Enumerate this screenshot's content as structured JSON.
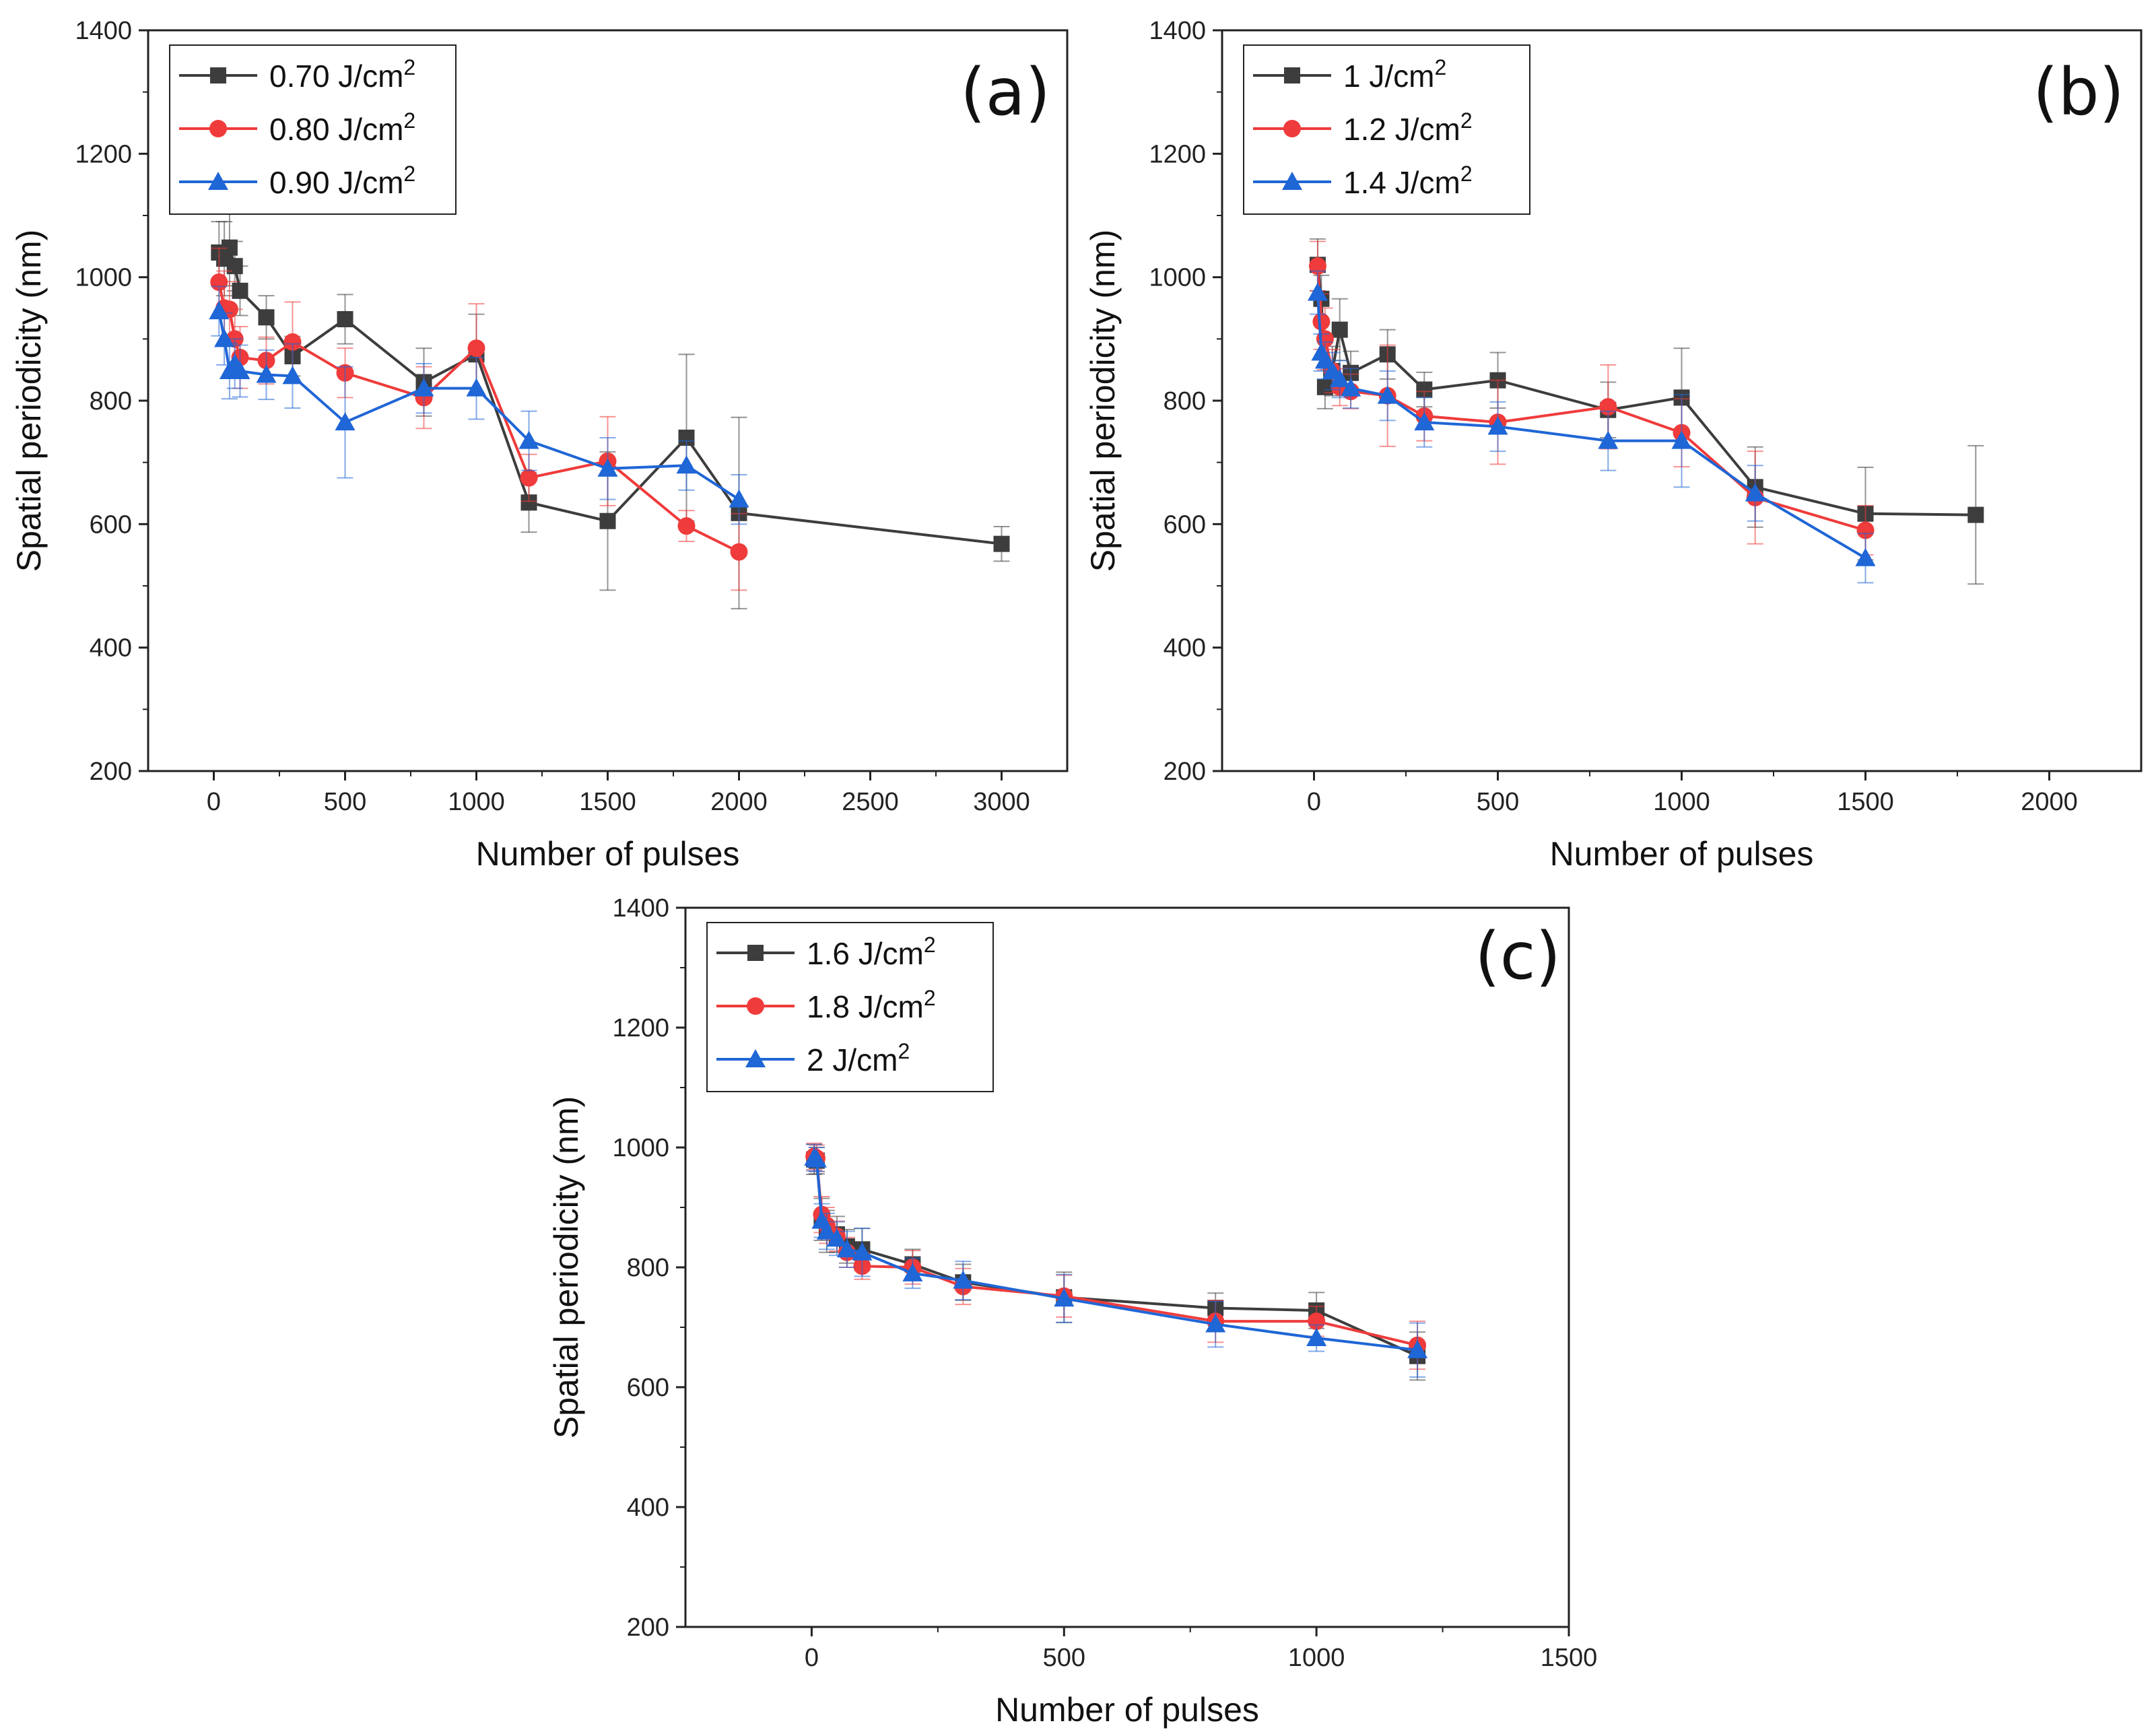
{
  "colors": {
    "black": "#3d3d3d",
    "red": "#ef3b3b",
    "blue": "#1f66d6"
  },
  "chart_data": [
    {
      "type": "line",
      "panel_label": "(a)",
      "xlabel": "Number of pulses",
      "ylabel": "Spatial periodicity (nm)",
      "xlim": [
        -250,
        3250
      ],
      "ylim": [
        200,
        1400
      ],
      "xticks": [
        0,
        500,
        1000,
        1500,
        2000,
        2500,
        3000
      ],
      "yticks": [
        200,
        400,
        600,
        800,
        1000,
        1200,
        1400
      ],
      "legend_position": "top-left",
      "series": [
        {
          "name": "0.70 J/cm",
          "superscript": "2",
          "marker": "square",
          "color": "#3d3d3d",
          "x": [
            20,
            40,
            60,
            80,
            100,
            200,
            300,
            500,
            800,
            1000,
            1200,
            1500,
            1800,
            2000,
            3000
          ],
          "y": [
            1040,
            1030,
            1048,
            1018,
            978,
            935,
            872,
            932,
            830,
            875,
            635,
            605,
            740,
            618,
            568
          ],
          "err": [
            50,
            60,
            62,
            40,
            40,
            35,
            32,
            40,
            55,
            65,
            48,
            112,
            135,
            155,
            28
          ]
        },
        {
          "name": "0.80 J/cm",
          "superscript": "2",
          "marker": "circle",
          "color": "#ef3b3b",
          "x": [
            20,
            40,
            60,
            80,
            100,
            200,
            300,
            500,
            800,
            1000,
            1200,
            1500,
            1800,
            2000
          ],
          "y": [
            992,
            950,
            948,
            900,
            870,
            865,
            895,
            845,
            805,
            885,
            675,
            702,
            597,
            555
          ],
          "err": [
            55,
            60,
            45,
            48,
            50,
            38,
            65,
            40,
            50,
            72,
            38,
            72,
            25,
            62
          ]
        },
        {
          "name": "0.90 J/cm",
          "superscript": "2",
          "marker": "triangle",
          "color": "#1f66d6",
          "x": [
            20,
            40,
            60,
            80,
            100,
            200,
            300,
            500,
            800,
            1000,
            1200,
            1500,
            1800,
            2000
          ],
          "y": [
            945,
            900,
            848,
            860,
            848,
            842,
            840,
            765,
            820,
            820,
            735,
            690,
            695,
            640
          ],
          "err": [
            40,
            42,
            45,
            40,
            42,
            40,
            52,
            90,
            40,
            50,
            48,
            50,
            40,
            40
          ]
        }
      ]
    },
    {
      "type": "line",
      "panel_label": "(b)",
      "xlabel": "Number of pulses",
      "ylabel": "Spatial periodicity (nm)",
      "xlim": [
        -250,
        2250
      ],
      "ylim": [
        200,
        1400
      ],
      "xticks": [
        0,
        500,
        1000,
        1500,
        2000
      ],
      "yticks": [
        200,
        400,
        600,
        800,
        1000,
        1200,
        1400
      ],
      "legend_position": "top-left",
      "series": [
        {
          "name": "1 J/cm",
          "superscript": "2",
          "marker": "square",
          "color": "#3d3d3d",
          "x": [
            10,
            20,
            30,
            50,
            70,
            100,
            200,
            300,
            500,
            800,
            1000,
            1200,
            1500,
            1800
          ],
          "y": [
            1020,
            965,
            822,
            848,
            915,
            845,
            875,
            818,
            833,
            785,
            805,
            660,
            617,
            615
          ],
          "err": [
            42,
            38,
            35,
            40,
            50,
            35,
            40,
            28,
            45,
            45,
            80,
            65,
            75,
            112
          ]
        },
        {
          "name": "1.2 J/cm",
          "superscript": "2",
          "marker": "circle",
          "color": "#ef3b3b",
          "x": [
            10,
            20,
            30,
            50,
            70,
            100,
            200,
            300,
            500,
            800,
            1000,
            1200,
            1500
          ],
          "y": [
            1018,
            928,
            900,
            848,
            822,
            815,
            808,
            775,
            765,
            790,
            748,
            643,
            590
          ],
          "err": [
            40,
            45,
            50,
            35,
            30,
            28,
            82,
            40,
            68,
            68,
            55,
            75,
            40
          ]
        },
        {
          "name": "1.4 J/cm",
          "superscript": "2",
          "marker": "triangle",
          "color": "#1f66d6",
          "x": [
            10,
            20,
            30,
            50,
            70,
            100,
            200,
            300,
            500,
            800,
            1000,
            1200,
            1500
          ],
          "y": [
            975,
            878,
            865,
            848,
            835,
            820,
            808,
            765,
            758,
            735,
            735,
            650,
            545
          ],
          "err": [
            35,
            30,
            30,
            30,
            30,
            32,
            40,
            40,
            40,
            48,
            75,
            45,
            40
          ]
        }
      ]
    },
    {
      "type": "line",
      "panel_label": "(c)",
      "xlabel": "Number of pulses",
      "ylabel": "Spatial periodicity (nm)",
      "xlim": [
        -250,
        1500
      ],
      "ylim": [
        200,
        1400
      ],
      "xticks": [
        0,
        500,
        1000,
        1500
      ],
      "yticks": [
        200,
        400,
        600,
        800,
        1000,
        1200,
        1400
      ],
      "legend_position": "top-left",
      "series": [
        {
          "name": "1.6 J/cm",
          "superscript": "2",
          "marker": "square",
          "color": "#3d3d3d",
          "x": [
            5,
            10,
            20,
            30,
            50,
            70,
            100,
            200,
            300,
            500,
            800,
            1000,
            1200
          ],
          "y": [
            980,
            978,
            880,
            860,
            855,
            835,
            830,
            805,
            775,
            750,
            732,
            728,
            652
          ],
          "err": [
            25,
            22,
            35,
            35,
            30,
            28,
            35,
            25,
            30,
            42,
            25,
            30,
            40
          ]
        },
        {
          "name": "1.8 J/cm",
          "superscript": "2",
          "marker": "circle",
          "color": "#ef3b3b",
          "x": [
            5,
            10,
            20,
            30,
            50,
            70,
            100,
            200,
            300,
            500,
            800,
            1000,
            1200
          ],
          "y": [
            985,
            982,
            888,
            870,
            852,
            825,
            802,
            800,
            768,
            752,
            710,
            710,
            670
          ],
          "err": [
            22,
            22,
            30,
            30,
            25,
            25,
            22,
            28,
            30,
            35,
            35,
            25,
            40
          ]
        },
        {
          "name": "2 J/cm",
          "superscript": "2",
          "marker": "triangle",
          "color": "#1f66d6",
          "x": [
            5,
            10,
            20,
            30,
            50,
            70,
            100,
            200,
            300,
            500,
            800,
            1000,
            1200
          ],
          "y": [
            983,
            980,
            878,
            860,
            848,
            830,
            825,
            790,
            778,
            748,
            705,
            682,
            662
          ],
          "err": [
            22,
            20,
            28,
            30,
            28,
            30,
            40,
            25,
            32,
            40,
            38,
            22,
            45
          ]
        }
      ]
    }
  ]
}
